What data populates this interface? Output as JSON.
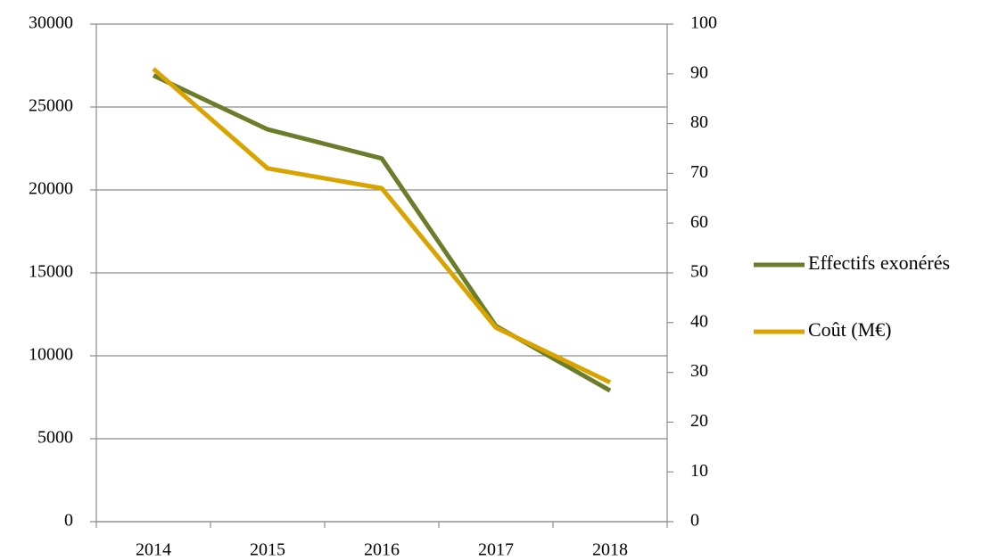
{
  "chart_data": {
    "type": "line",
    "categories": [
      "2014",
      "2015",
      "2016",
      "2017",
      "2018"
    ],
    "series": [
      {
        "name": "Effectifs exonérés",
        "color": "#6b7d2a",
        "values": [
          26900,
          23650,
          21900,
          11800,
          7900
        ]
      },
      {
        "name": "Coût (M€)",
        "color": "#d9a400",
        "axis": "y2",
        "values": [
          91,
          71,
          67,
          39,
          28
        ]
      }
    ],
    "ylim": [
      0,
      30000
    ],
    "yticks": [
      0,
      5000,
      10000,
      15000,
      20000,
      25000,
      30000
    ],
    "y2lim": [
      0,
      100
    ],
    "y2ticks": [
      0,
      10,
      20,
      30,
      40,
      50,
      60,
      70,
      80,
      90,
      100
    ],
    "grid": true,
    "legend": "right"
  }
}
